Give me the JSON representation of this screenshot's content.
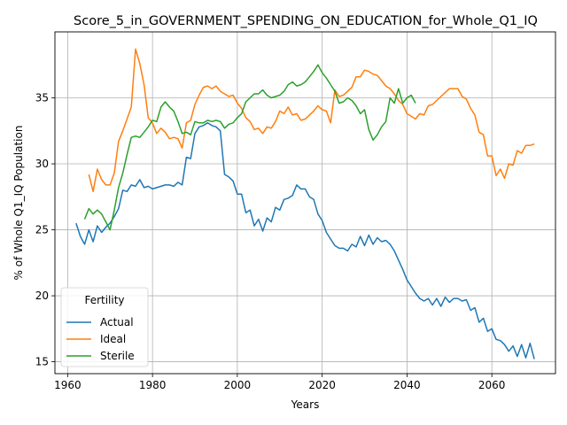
{
  "chart_data": {
    "type": "line",
    "title": "Score_5_in_GOVERNMENT_SPENDING_ON_EDUCATION_for_Whole_Q1_IQ",
    "xlabel": "Years",
    "ylabel": "% of Whole Q1_IQ Population",
    "xlim": [
      1957,
      2075
    ],
    "ylim": [
      14.1,
      40.0
    ],
    "xticks": [
      1960,
      1980,
      2000,
      2020,
      2040,
      2060
    ],
    "yticks": [
      15,
      20,
      25,
      30,
      35
    ],
    "grid": true,
    "legend": {
      "title": "Fertility",
      "position": "lower-left"
    },
    "series": [
      {
        "name": "Actual",
        "color": "#1f77b4",
        "points": [
          [
            1962,
            25.5
          ],
          [
            1963,
            24.5
          ],
          [
            1964,
            23.9
          ],
          [
            1965,
            25.0
          ],
          [
            1966,
            24.1
          ],
          [
            1967,
            25.3
          ],
          [
            1968,
            24.8
          ],
          [
            1969,
            25.2
          ],
          [
            1970,
            25.5
          ],
          [
            1971,
            26.0
          ],
          [
            1972,
            26.6
          ],
          [
            1973,
            28.0
          ],
          [
            1974,
            27.9
          ],
          [
            1975,
            28.4
          ],
          [
            1976,
            28.3
          ],
          [
            1977,
            28.8
          ],
          [
            1978,
            28.2
          ],
          [
            1979,
            28.3
          ],
          [
            1980,
            28.1
          ],
          [
            1981,
            28.2
          ],
          [
            1982,
            28.3
          ],
          [
            1983,
            28.4
          ],
          [
            1984,
            28.4
          ],
          [
            1985,
            28.3
          ],
          [
            1986,
            28.6
          ],
          [
            1987,
            28.4
          ],
          [
            1988,
            30.5
          ],
          [
            1989,
            30.4
          ],
          [
            1990,
            32.3
          ],
          [
            1991,
            32.8
          ],
          [
            1992,
            32.9
          ],
          [
            1993,
            33.1
          ],
          [
            1994,
            32.9
          ],
          [
            1995,
            32.8
          ],
          [
            1996,
            32.5
          ],
          [
            1997,
            29.2
          ],
          [
            1998,
            29.0
          ],
          [
            1999,
            28.7
          ],
          [
            2000,
            27.7
          ],
          [
            2001,
            27.7
          ],
          [
            2002,
            26.3
          ],
          [
            2003,
            26.5
          ],
          [
            2004,
            25.3
          ],
          [
            2005,
            25.8
          ],
          [
            2006,
            24.9
          ],
          [
            2007,
            25.9
          ],
          [
            2008,
            25.6
          ],
          [
            2009,
            26.7
          ],
          [
            2010,
            26.5
          ],
          [
            2011,
            27.3
          ],
          [
            2012,
            27.4
          ],
          [
            2013,
            27.6
          ],
          [
            2014,
            28.4
          ],
          [
            2015,
            28.1
          ],
          [
            2016,
            28.1
          ],
          [
            2017,
            27.5
          ],
          [
            2018,
            27.3
          ],
          [
            2019,
            26.2
          ],
          [
            2020,
            25.7
          ],
          [
            2021,
            24.8
          ],
          [
            2022,
            24.3
          ],
          [
            2023,
            23.8
          ],
          [
            2024,
            23.6
          ],
          [
            2025,
            23.6
          ],
          [
            2026,
            23.4
          ],
          [
            2027,
            23.9
          ],
          [
            2028,
            23.7
          ],
          [
            2029,
            24.5
          ],
          [
            2030,
            23.8
          ],
          [
            2031,
            24.6
          ],
          [
            2032,
            23.9
          ],
          [
            2033,
            24.4
          ],
          [
            2034,
            24.1
          ],
          [
            2035,
            24.2
          ],
          [
            2036,
            23.9
          ],
          [
            2037,
            23.4
          ],
          [
            2038,
            22.7
          ],
          [
            2039,
            22.0
          ],
          [
            2040,
            21.2
          ],
          [
            2041,
            20.7
          ],
          [
            2042,
            20.2
          ],
          [
            2043,
            19.8
          ],
          [
            2044,
            19.6
          ],
          [
            2045,
            19.8
          ],
          [
            2046,
            19.3
          ],
          [
            2047,
            19.8
          ],
          [
            2048,
            19.2
          ],
          [
            2049,
            19.9
          ],
          [
            2050,
            19.5
          ],
          [
            2051,
            19.8
          ],
          [
            2052,
            19.8
          ],
          [
            2053,
            19.6
          ],
          [
            2054,
            19.7
          ],
          [
            2055,
            18.9
          ],
          [
            2056,
            19.1
          ],
          [
            2057,
            18.0
          ],
          [
            2058,
            18.3
          ],
          [
            2059,
            17.3
          ],
          [
            2060,
            17.5
          ],
          [
            2061,
            16.7
          ],
          [
            2062,
            16.6
          ],
          [
            2063,
            16.3
          ],
          [
            2064,
            15.8
          ],
          [
            2065,
            16.2
          ],
          [
            2066,
            15.4
          ],
          [
            2067,
            16.3
          ],
          [
            2068,
            15.3
          ],
          [
            2069,
            16.4
          ],
          [
            2070,
            15.2
          ]
        ]
      },
      {
        "name": "Ideal",
        "color": "#ff7f0e",
        "points": [
          [
            1965,
            29.2
          ],
          [
            1966,
            27.9
          ],
          [
            1967,
            29.6
          ],
          [
            1968,
            28.8
          ],
          [
            1969,
            28.4
          ],
          [
            1970,
            28.4
          ],
          [
            1971,
            29.3
          ],
          [
            1972,
            31.7
          ],
          [
            1973,
            32.5
          ],
          [
            1974,
            33.4
          ],
          [
            1975,
            34.3
          ],
          [
            1976,
            38.7
          ],
          [
            1977,
            37.6
          ],
          [
            1978,
            36.0
          ],
          [
            1979,
            33.5
          ],
          [
            1980,
            33.1
          ],
          [
            1981,
            32.3
          ],
          [
            1982,
            32.7
          ],
          [
            1983,
            32.4
          ],
          [
            1984,
            31.9
          ],
          [
            1985,
            32.0
          ],
          [
            1986,
            31.9
          ],
          [
            1987,
            31.2
          ],
          [
            1988,
            33.1
          ],
          [
            1989,
            33.3
          ],
          [
            1990,
            34.5
          ],
          [
            1991,
            35.2
          ],
          [
            1992,
            35.8
          ],
          [
            1993,
            35.9
          ],
          [
            1994,
            35.7
          ],
          [
            1995,
            35.9
          ],
          [
            1996,
            35.5
          ],
          [
            1997,
            35.3
          ],
          [
            1998,
            35.1
          ],
          [
            1999,
            35.2
          ],
          [
            2000,
            34.6
          ],
          [
            2001,
            34.2
          ],
          [
            2002,
            33.5
          ],
          [
            2003,
            33.2
          ],
          [
            2004,
            32.6
          ],
          [
            2005,
            32.7
          ],
          [
            2006,
            32.3
          ],
          [
            2007,
            32.8
          ],
          [
            2008,
            32.7
          ],
          [
            2009,
            33.2
          ],
          [
            2010,
            34.0
          ],
          [
            2011,
            33.8
          ],
          [
            2012,
            34.3
          ],
          [
            2013,
            33.7
          ],
          [
            2014,
            33.8
          ],
          [
            2015,
            33.3
          ],
          [
            2016,
            33.4
          ],
          [
            2017,
            33.7
          ],
          [
            2018,
            34.0
          ],
          [
            2019,
            34.4
          ],
          [
            2020,
            34.1
          ],
          [
            2021,
            34.0
          ],
          [
            2022,
            33.1
          ],
          [
            2023,
            35.6
          ],
          [
            2024,
            35.1
          ],
          [
            2025,
            35.2
          ],
          [
            2026,
            35.5
          ],
          [
            2027,
            35.8
          ],
          [
            2028,
            36.6
          ],
          [
            2029,
            36.6
          ],
          [
            2030,
            37.1
          ],
          [
            2031,
            37.0
          ],
          [
            2032,
            36.8
          ],
          [
            2033,
            36.7
          ],
          [
            2034,
            36.3
          ],
          [
            2035,
            35.9
          ],
          [
            2036,
            35.7
          ],
          [
            2037,
            35.3
          ],
          [
            2038,
            34.8
          ],
          [
            2039,
            34.5
          ],
          [
            2040,
            33.8
          ],
          [
            2041,
            33.6
          ],
          [
            2042,
            33.4
          ],
          [
            2043,
            33.8
          ],
          [
            2044,
            33.7
          ],
          [
            2045,
            34.4
          ],
          [
            2046,
            34.5
          ],
          [
            2047,
            34.8
          ],
          [
            2048,
            35.1
          ],
          [
            2049,
            35.4
          ],
          [
            2050,
            35.7
          ],
          [
            2051,
            35.7
          ],
          [
            2052,
            35.7
          ],
          [
            2053,
            35.1
          ],
          [
            2054,
            34.9
          ],
          [
            2055,
            34.2
          ],
          [
            2056,
            33.7
          ],
          [
            2057,
            32.4
          ],
          [
            2058,
            32.2
          ],
          [
            2059,
            30.6
          ],
          [
            2060,
            30.6
          ],
          [
            2061,
            29.1
          ],
          [
            2062,
            29.6
          ],
          [
            2063,
            28.9
          ],
          [
            2064,
            30.0
          ],
          [
            2065,
            29.9
          ],
          [
            2066,
            31.0
          ],
          [
            2067,
            30.8
          ],
          [
            2068,
            31.4
          ],
          [
            2069,
            31.4
          ],
          [
            2070,
            31.5
          ]
        ]
      },
      {
        "name": "Sterile",
        "color": "#2ca02c",
        "points": [
          [
            1964,
            25.8
          ],
          [
            1965,
            26.6
          ],
          [
            1966,
            26.2
          ],
          [
            1967,
            26.5
          ],
          [
            1968,
            26.2
          ],
          [
            1969,
            25.6
          ],
          [
            1970,
            25.0
          ],
          [
            1971,
            26.5
          ],
          [
            1972,
            28.2
          ],
          [
            1973,
            29.3
          ],
          [
            1974,
            30.7
          ],
          [
            1975,
            32.0
          ],
          [
            1976,
            32.1
          ],
          [
            1977,
            32.0
          ],
          [
            1978,
            32.4
          ],
          [
            1979,
            32.8
          ],
          [
            1980,
            33.3
          ],
          [
            1981,
            33.2
          ],
          [
            1982,
            34.3
          ],
          [
            1983,
            34.7
          ],
          [
            1984,
            34.3
          ],
          [
            1985,
            34.0
          ],
          [
            1986,
            33.2
          ],
          [
            1987,
            32.3
          ],
          [
            1988,
            32.4
          ],
          [
            1989,
            32.2
          ],
          [
            1990,
            33.2
          ],
          [
            1991,
            33.1
          ],
          [
            1992,
            33.1
          ],
          [
            1993,
            33.3
          ],
          [
            1994,
            33.2
          ],
          [
            1995,
            33.3
          ],
          [
            1996,
            33.2
          ],
          [
            1997,
            32.7
          ],
          [
            1998,
            33.0
          ],
          [
            1999,
            33.1
          ],
          [
            2000,
            33.5
          ],
          [
            2001,
            33.8
          ],
          [
            2002,
            34.7
          ],
          [
            2003,
            35.0
          ],
          [
            2004,
            35.3
          ],
          [
            2005,
            35.3
          ],
          [
            2006,
            35.6
          ],
          [
            2007,
            35.2
          ],
          [
            2008,
            35.0
          ],
          [
            2009,
            35.1
          ],
          [
            2010,
            35.2
          ],
          [
            2011,
            35.5
          ],
          [
            2012,
            36.0
          ],
          [
            2013,
            36.2
          ],
          [
            2014,
            35.9
          ],
          [
            2015,
            36.0
          ],
          [
            2016,
            36.2
          ],
          [
            2017,
            36.6
          ],
          [
            2018,
            37.0
          ],
          [
            2019,
            37.5
          ],
          [
            2020,
            36.9
          ],
          [
            2021,
            36.5
          ],
          [
            2022,
            36.0
          ],
          [
            2023,
            35.5
          ],
          [
            2024,
            34.6
          ],
          [
            2025,
            34.7
          ],
          [
            2026,
            35.0
          ],
          [
            2027,
            34.8
          ],
          [
            2028,
            34.4
          ],
          [
            2029,
            33.8
          ],
          [
            2030,
            34.1
          ],
          [
            2031,
            32.6
          ],
          [
            2032,
            31.8
          ],
          [
            2033,
            32.2
          ],
          [
            2034,
            32.8
          ],
          [
            2035,
            33.2
          ],
          [
            2036,
            35.0
          ],
          [
            2037,
            34.6
          ],
          [
            2038,
            35.7
          ],
          [
            2039,
            34.6
          ],
          [
            2040,
            35.0
          ],
          [
            2041,
            35.2
          ],
          [
            2042,
            34.6
          ]
        ]
      }
    ]
  }
}
